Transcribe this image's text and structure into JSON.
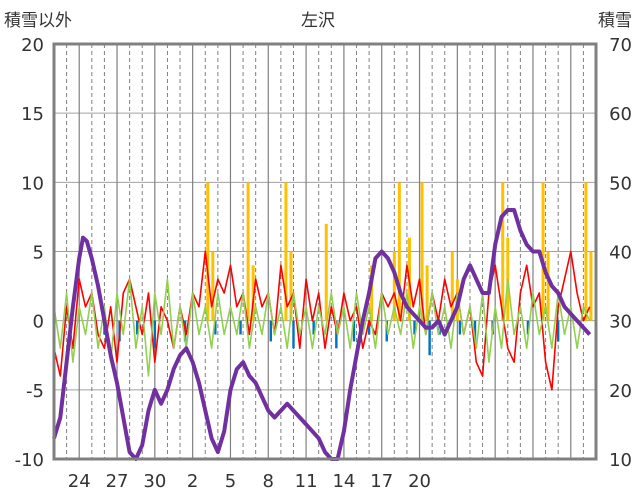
{
  "chart_data": {
    "type": "line",
    "title": "左沢",
    "ylabel_left": "積雪以外",
    "ylabel_right": "積雪",
    "y_left_range": [
      -10,
      20
    ],
    "y_right_range": [
      10,
      70
    ],
    "y_left_ticks": [
      "20",
      "15",
      "10",
      "5",
      "0",
      "-5",
      "-10"
    ],
    "y_right_ticks": [
      "70",
      "60",
      "50",
      "40",
      "30",
      "20",
      "10"
    ],
    "x_tick_labels": [
      "24",
      "27",
      "30",
      "2",
      "5",
      "8",
      "11",
      "14",
      "17",
      "20"
    ],
    "grid": true,
    "colors": {
      "snow_depth": "#7030A0",
      "temperature": "#FF0000",
      "precipitation": "#FFC000",
      "wind": "#92D050",
      "sunshine": "#0070C0",
      "frame": "#808080"
    },
    "snow_depth": [
      [
        0,
        13
      ],
      [
        0.5,
        16
      ],
      [
        1,
        24
      ],
      [
        1.5,
        32
      ],
      [
        2,
        39
      ],
      [
        2.3,
        42
      ],
      [
        2.6,
        41.5
      ],
      [
        3,
        39
      ],
      [
        3.5,
        35
      ],
      [
        4,
        30
      ],
      [
        4.5,
        25
      ],
      [
        5,
        21
      ],
      [
        5.5,
        16
      ],
      [
        6,
        11
      ],
      [
        6.5,
        10
      ],
      [
        7,
        12
      ],
      [
        7.5,
        17
      ],
      [
        8,
        20
      ],
      [
        8.5,
        18
      ],
      [
        9,
        20
      ],
      [
        9.5,
        23
      ],
      [
        10,
        25
      ],
      [
        10.5,
        26
      ],
      [
        11,
        24
      ],
      [
        11.5,
        21
      ],
      [
        12,
        17
      ],
      [
        12.5,
        13
      ],
      [
        13,
        11
      ],
      [
        13.5,
        14
      ],
      [
        14,
        20
      ],
      [
        14.5,
        23
      ],
      [
        15,
        24
      ],
      [
        15.5,
        22
      ],
      [
        16,
        21
      ],
      [
        16.5,
        19
      ],
      [
        17,
        17
      ],
      [
        17.5,
        16
      ],
      [
        18,
        17
      ],
      [
        18.5,
        18
      ],
      [
        19,
        17
      ],
      [
        19.5,
        16
      ],
      [
        20,
        15
      ],
      [
        20.5,
        14
      ],
      [
        21,
        13
      ],
      [
        21.5,
        11
      ],
      [
        22,
        10
      ],
      [
        22.5,
        10
      ],
      [
        23,
        14
      ],
      [
        23.5,
        20
      ],
      [
        24,
        25
      ],
      [
        24.5,
        30
      ],
      [
        25,
        34
      ],
      [
        25.5,
        39
      ],
      [
        26,
        40
      ],
      [
        26.5,
        39
      ],
      [
        27,
        37
      ],
      [
        27.5,
        34
      ],
      [
        28,
        32
      ],
      [
        28.5,
        31
      ],
      [
        29,
        30
      ],
      [
        29.5,
        29
      ],
      [
        30,
        29
      ],
      [
        30.5,
        30
      ],
      [
        31,
        28
      ],
      [
        31.5,
        30
      ],
      [
        32,
        32
      ],
      [
        32.5,
        36
      ],
      [
        33,
        38
      ],
      [
        33.5,
        36
      ],
      [
        34,
        34
      ],
      [
        34.5,
        34
      ],
      [
        35,
        41
      ],
      [
        35.5,
        45
      ],
      [
        36,
        46
      ],
      [
        36.5,
        46
      ],
      [
        37,
        43
      ],
      [
        37.5,
        41
      ],
      [
        38,
        40
      ],
      [
        38.5,
        40
      ],
      [
        39,
        37
      ],
      [
        39.5,
        35
      ],
      [
        40,
        34
      ],
      [
        40.5,
        32
      ],
      [
        41,
        31
      ],
      [
        41.5,
        30
      ],
      [
        42,
        29
      ],
      [
        42.5,
        28
      ]
    ],
    "temperature": [
      [
        0,
        -2
      ],
      [
        0.5,
        -4
      ],
      [
        1,
        1
      ],
      [
        1.5,
        -2
      ],
      [
        2,
        3
      ],
      [
        2.5,
        1
      ],
      [
        3,
        2
      ],
      [
        3.5,
        -1
      ],
      [
        4,
        -2
      ],
      [
        4.5,
        1
      ],
      [
        5,
        -3
      ],
      [
        5.5,
        2
      ],
      [
        6,
        3
      ],
      [
        6.5,
        1
      ],
      [
        7,
        -1
      ],
      [
        7.5,
        2
      ],
      [
        8,
        -3
      ],
      [
        8.5,
        1
      ],
      [
        9,
        0
      ],
      [
        9.5,
        -2
      ],
      [
        10,
        1
      ],
      [
        10.5,
        -1
      ],
      [
        11,
        2
      ],
      [
        11.5,
        1
      ],
      [
        12,
        5
      ],
      [
        12.5,
        1
      ],
      [
        13,
        3
      ],
      [
        13.5,
        2
      ],
      [
        14,
        4
      ],
      [
        14.5,
        1
      ],
      [
        15,
        2
      ],
      [
        15.5,
        -1
      ],
      [
        16,
        3
      ],
      [
        16.5,
        1
      ],
      [
        17,
        2
      ],
      [
        17.5,
        -1
      ],
      [
        18,
        4
      ],
      [
        18.5,
        1
      ],
      [
        19,
        2
      ],
      [
        19.5,
        -2
      ],
      [
        20,
        3
      ],
      [
        20.5,
        0
      ],
      [
        21,
        2
      ],
      [
        21.5,
        -2
      ],
      [
        22,
        1
      ],
      [
        22.5,
        -1
      ],
      [
        23,
        2
      ],
      [
        23.5,
        0
      ],
      [
        24,
        1
      ],
      [
        24.5,
        -2
      ],
      [
        25,
        0
      ],
      [
        25.5,
        -1
      ],
      [
        26,
        2
      ],
      [
        26.5,
        1
      ],
      [
        27,
        2
      ],
      [
        27.5,
        0
      ],
      [
        28,
        4
      ],
      [
        28.5,
        1
      ],
      [
        29,
        3
      ],
      [
        29.5,
        -1
      ],
      [
        30,
        2
      ],
      [
        30.5,
        0
      ],
      [
        31,
        3
      ],
      [
        31.5,
        1
      ],
      [
        32,
        2
      ],
      [
        32.5,
        -1
      ],
      [
        33,
        1
      ],
      [
        33.5,
        -3
      ],
      [
        34,
        -4
      ],
      [
        34.5,
        2
      ],
      [
        35,
        4
      ],
      [
        35.5,
        1
      ],
      [
        36,
        -2
      ],
      [
        36.5,
        -3
      ],
      [
        37,
        2
      ],
      [
        37.5,
        4
      ],
      [
        38,
        1
      ],
      [
        38.5,
        2
      ],
      [
        39,
        -3
      ],
      [
        39.5,
        -5
      ],
      [
        40,
        1
      ],
      [
        40.5,
        3
      ],
      [
        41,
        5
      ],
      [
        41.5,
        2
      ],
      [
        42,
        0
      ],
      [
        42.5,
        1
      ]
    ],
    "precipitation": [
      [
        12.2,
        10
      ],
      [
        12.6,
        5
      ],
      [
        15.4,
        10
      ],
      [
        15.8,
        4
      ],
      [
        18.4,
        10
      ],
      [
        18.8,
        5
      ],
      [
        21.6,
        7
      ],
      [
        25.2,
        4
      ],
      [
        27.0,
        5
      ],
      [
        27.4,
        10
      ],
      [
        28.2,
        6
      ],
      [
        29.2,
        10
      ],
      [
        29.6,
        4
      ],
      [
        31.6,
        5
      ],
      [
        32.0,
        3
      ],
      [
        35.6,
        10
      ],
      [
        36.0,
        6
      ],
      [
        38.8,
        10
      ],
      [
        39.2,
        5
      ],
      [
        42.2,
        10
      ],
      [
        42.6,
        5
      ]
    ],
    "sunshine": [
      [
        4.0,
        -1
      ],
      [
        5.2,
        -1.5
      ],
      [
        6.6,
        -1
      ],
      [
        8.0,
        -2
      ],
      [
        10.4,
        -1.5
      ],
      [
        12.8,
        -1
      ],
      [
        14.8,
        -1
      ],
      [
        17.2,
        -1.5
      ],
      [
        19.0,
        -2
      ],
      [
        20.6,
        -1
      ],
      [
        22.4,
        -2
      ],
      [
        23.8,
        -1.5
      ],
      [
        25.0,
        -1
      ],
      [
        26.4,
        -1.5
      ],
      [
        28.6,
        -1
      ],
      [
        29.8,
        -2.5
      ],
      [
        30.6,
        -1
      ],
      [
        32.2,
        -1
      ],
      [
        33.4,
        -1.5
      ],
      [
        34.8,
        -1
      ],
      [
        37.6,
        -1
      ],
      [
        40.0,
        -1.5
      ]
    ],
    "wind": [
      [
        0,
        1
      ],
      [
        0.5,
        -2
      ],
      [
        1,
        2
      ],
      [
        1.5,
        -3
      ],
      [
        2,
        1
      ],
      [
        2.5,
        -1
      ],
      [
        3,
        2
      ],
      [
        3.5,
        -2
      ],
      [
        4,
        1
      ],
      [
        4.5,
        -3
      ],
      [
        5,
        2
      ],
      [
        5.5,
        -1
      ],
      [
        6,
        3
      ],
      [
        6.5,
        -2
      ],
      [
        7,
        1
      ],
      [
        7.5,
        -4
      ],
      [
        8,
        2
      ],
      [
        8.5,
        -1
      ],
      [
        9,
        3
      ],
      [
        9.5,
        -2
      ],
      [
        10,
        1
      ],
      [
        10.5,
        -2
      ],
      [
        11,
        2
      ],
      [
        11.5,
        -1
      ],
      [
        12,
        1
      ],
      [
        12.5,
        -2
      ],
      [
        13,
        2
      ],
      [
        13.5,
        -1
      ],
      [
        14,
        1
      ],
      [
        14.5,
        -1
      ],
      [
        15,
        2
      ],
      [
        15.5,
        -2
      ],
      [
        16,
        1
      ],
      [
        16.5,
        -1
      ],
      [
        17,
        2
      ],
      [
        17.5,
        -1
      ],
      [
        18,
        1
      ],
      [
        18.5,
        -2
      ],
      [
        19,
        2
      ],
      [
        19.5,
        -1
      ],
      [
        20,
        1
      ],
      [
        20.5,
        -2
      ],
      [
        21,
        1
      ],
      [
        21.5,
        -1
      ],
      [
        22,
        2
      ],
      [
        22.5,
        -1
      ],
      [
        23,
        1
      ],
      [
        23.5,
        -2
      ],
      [
        24,
        2
      ],
      [
        24.5,
        -1
      ],
      [
        25,
        1
      ],
      [
        25.5,
        -2
      ],
      [
        26,
        2
      ],
      [
        26.5,
        -1
      ],
      [
        27,
        1
      ],
      [
        27.5,
        -1
      ],
      [
        28,
        2
      ],
      [
        28.5,
        -2
      ],
      [
        29,
        1
      ],
      [
        29.5,
        -1
      ],
      [
        30,
        2
      ],
      [
        30.5,
        -1
      ],
      [
        31,
        1
      ],
      [
        31.5,
        -2
      ],
      [
        32,
        2
      ],
      [
        32.5,
        -1
      ],
      [
        33,
        1
      ],
      [
        33.5,
        -2
      ],
      [
        34,
        2
      ],
      [
        34.5,
        -3
      ],
      [
        35,
        1
      ],
      [
        35.5,
        -2
      ],
      [
        36,
        3
      ],
      [
        36.5,
        -1
      ],
      [
        37,
        1
      ],
      [
        37.5,
        -2
      ],
      [
        38,
        2
      ],
      [
        38.5,
        -1
      ],
      [
        39,
        1
      ],
      [
        39.5,
        -2
      ],
      [
        40,
        2
      ],
      [
        40.5,
        -1
      ],
      [
        41,
        1
      ],
      [
        41.5,
        -2
      ],
      [
        42,
        1
      ],
      [
        42.5,
        0
      ]
    ]
  }
}
